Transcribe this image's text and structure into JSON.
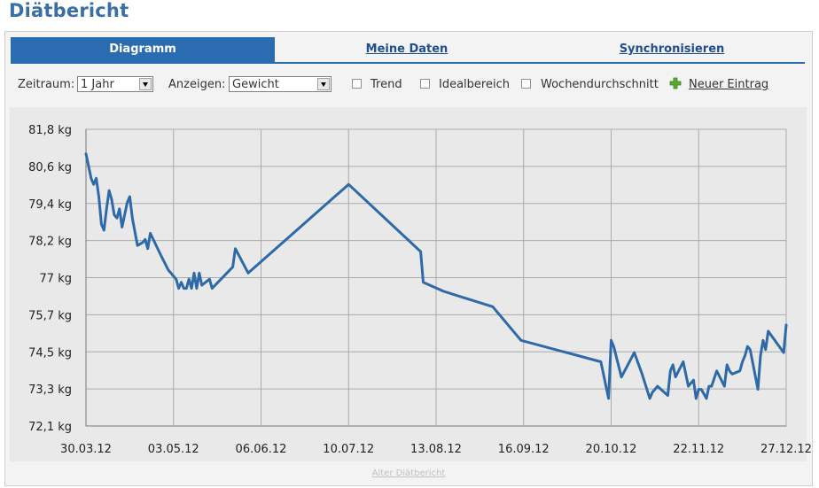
{
  "page": {
    "title": "Diätbericht"
  },
  "tabs": [
    {
      "label": "Diagramm",
      "active": true
    },
    {
      "label": "Meine Daten",
      "active": false
    },
    {
      "label": "Synchronisieren",
      "active": false
    }
  ],
  "toolbar": {
    "period_label": "Zeitraum:",
    "period_value": "1 Jahr",
    "show_label": "Anzeigen:",
    "show_value": "Gewicht",
    "trend_label": "Trend",
    "ideal_label": "Idealbereich",
    "weekly_label": "Wochendurchschnitt",
    "new_entry_label": "Neuer Eintrag"
  },
  "colors": {
    "accent": "#2b6cb0",
    "line": "#2e6aa8",
    "add_icon": "#5aa832"
  },
  "footer": {
    "old_report_link": "Alter Diätbericht"
  },
  "chart_data": {
    "type": "line",
    "x_tick_labels": [
      "30.03.12",
      "03.05.12",
      "06.06.12",
      "10.07.12",
      "13.08.12",
      "16.09.12",
      "20.10.12",
      "22.11.12",
      "27.12.12"
    ],
    "y_tick_labels": [
      "72,1 kg",
      "73,3 kg",
      "74,5 kg",
      "75,7 kg",
      "77 kg",
      "78,2 kg",
      "79,4 kg",
      "80,6 kg",
      "81,8 kg"
    ],
    "xlim": [
      "2012-03-30",
      "2012-12-27"
    ],
    "ylim": [
      72.1,
      81.8
    ],
    "grid": true,
    "series": [
      {
        "x": [
          "2012-03-30",
          "2012-03-31",
          "2012-04-01",
          "2012-04-02",
          "2012-04-03",
          "2012-04-04",
          "2012-04-05",
          "2012-04-06",
          "2012-04-07",
          "2012-04-08",
          "2012-04-09",
          "2012-04-10",
          "2012-04-11",
          "2012-04-12",
          "2012-04-13",
          "2012-04-14",
          "2012-04-15",
          "2012-04-16",
          "2012-04-17",
          "2012-04-19",
          "2012-04-21",
          "2012-04-22",
          "2012-04-23",
          "2012-04-24",
          "2012-04-28",
          "2012-05-01",
          "2012-05-04",
          "2012-05-05",
          "2012-05-06",
          "2012-05-07",
          "2012-05-08",
          "2012-05-09",
          "2012-05-10",
          "2012-05-11",
          "2012-05-12",
          "2012-05-13",
          "2012-05-14",
          "2012-05-17",
          "2012-05-18",
          "2012-05-26",
          "2012-05-27",
          "2012-06-01",
          "2012-07-10",
          "2012-08-07",
          "2012-08-08",
          "2012-08-16",
          "2012-09-04",
          "2012-09-15",
          "2012-10-16",
          "2012-10-19",
          "2012-10-20",
          "2012-10-21",
          "2012-10-24",
          "2012-10-29",
          "2012-11-01",
          "2012-11-04",
          "2012-11-05",
          "2012-11-06",
          "2012-11-07",
          "2012-11-11",
          "2012-11-12",
          "2012-11-13",
          "2012-11-14",
          "2012-11-17",
          "2012-11-18",
          "2012-11-19",
          "2012-11-20",
          "2012-11-21",
          "2012-11-22",
          "2012-11-23",
          "2012-11-24",
          "2012-11-26",
          "2012-11-27",
          "2012-11-28",
          "2012-11-30",
          "2012-12-03",
          "2012-12-04",
          "2012-12-05",
          "2012-12-06",
          "2012-12-09",
          "2012-12-10",
          "2012-12-11",
          "2012-12-12",
          "2012-12-13",
          "2012-12-16",
          "2012-12-17",
          "2012-12-18",
          "2012-12-19",
          "2012-12-20",
          "2012-12-26",
          "2012-12-27"
        ],
        "y": [
          81.0,
          80.6,
          80.2,
          80.0,
          80.2,
          79.6,
          78.7,
          78.5,
          79.2,
          79.8,
          79.5,
          79.0,
          78.9,
          79.2,
          78.6,
          79.0,
          79.4,
          79.6,
          78.9,
          78.0,
          78.1,
          78.2,
          77.9,
          78.4,
          77.7,
          77.2,
          76.9,
          76.6,
          76.8,
          76.6,
          76.6,
          76.9,
          76.6,
          77.1,
          76.6,
          77.1,
          76.7,
          76.9,
          76.6,
          77.3,
          77.9,
          77.1,
          80.0,
          77.8,
          76.8,
          76.5,
          76.0,
          74.9,
          74.2,
          73.0,
          74.9,
          74.7,
          73.7,
          74.5,
          73.8,
          73.0,
          73.2,
          73.3,
          73.4,
          73.1,
          73.9,
          74.1,
          73.7,
          74.2,
          73.8,
          73.4,
          73.5,
          73.6,
          73.0,
          73.3,
          73.3,
          73.0,
          73.4,
          73.4,
          73.9,
          73.4,
          74.1,
          73.9,
          73.8,
          73.9,
          74.2,
          74.4,
          74.7,
          74.6,
          73.3,
          74.4,
          74.9,
          74.6,
          75.2,
          74.5,
          75.4
        ]
      }
    ]
  }
}
